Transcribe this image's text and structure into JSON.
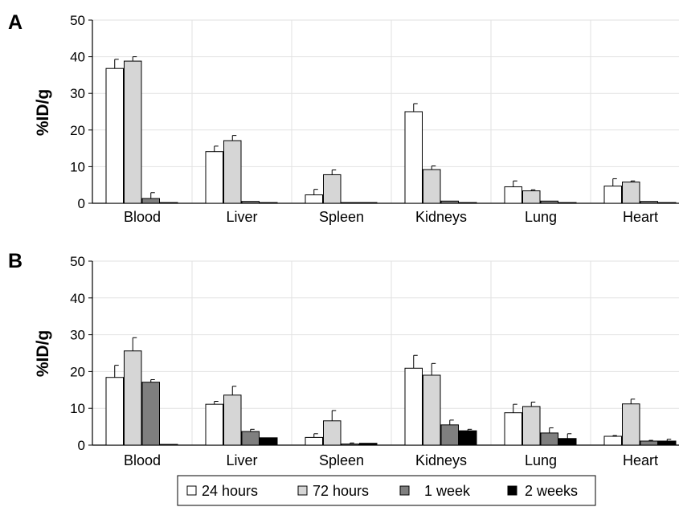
{
  "legend": [
    "24 hours",
    "72 hours",
    "1 week",
    "2 weeks"
  ],
  "series_colors": [
    "#ffffff",
    "#d6d6d6",
    "#7f7f7f",
    "#000000"
  ],
  "chart_data": [
    {
      "type": "bar",
      "panel": "A",
      "ylabel": "%ID/g",
      "ylim": [
        0,
        50
      ],
      "yticks": [
        0,
        10,
        20,
        30,
        40,
        50
      ],
      "grid": true,
      "error_bars": true,
      "categories": [
        "Blood",
        "Liver",
        "Spleen",
        "Kidneys",
        "Lung",
        "Heart"
      ],
      "series": [
        {
          "name": "24 hours",
          "values": [
            36.8,
            14.1,
            2.3,
            25.0,
            4.5,
            4.7
          ],
          "errors": [
            2.5,
            1.5,
            1.5,
            2.2,
            1.6,
            2.0
          ]
        },
        {
          "name": "72 hours",
          "values": [
            38.8,
            17.1,
            7.8,
            9.2,
            3.4,
            5.8
          ],
          "errors": [
            1.2,
            1.4,
            1.3,
            1.0,
            0.3,
            0.3
          ]
        },
        {
          "name": "1 week",
          "values": [
            1.3,
            0.5,
            0.2,
            0.6,
            0.6,
            0.5
          ],
          "errors": [
            1.6,
            0.0,
            0.0,
            0.0,
            0.0,
            0.0
          ]
        },
        {
          "name": "2 weeks",
          "values": [
            0.2,
            0.2,
            0.2,
            0.2,
            0.2,
            0.2
          ],
          "errors": [
            0.0,
            0.0,
            0.0,
            0.0,
            0.0,
            0.0
          ]
        }
      ]
    },
    {
      "type": "bar",
      "panel": "B",
      "ylabel": "%ID/g",
      "ylim": [
        0,
        50
      ],
      "yticks": [
        0,
        10,
        20,
        30,
        40,
        50
      ],
      "grid": true,
      "error_bars": true,
      "categories": [
        "Blood",
        "Liver",
        "Spleen",
        "Kidneys",
        "Lung",
        "Heart"
      ],
      "series": [
        {
          "name": "24 hours",
          "values": [
            18.4,
            11.1,
            2.1,
            20.9,
            8.8,
            2.4
          ],
          "errors": [
            3.3,
            0.8,
            1.0,
            3.5,
            2.3,
            0.2
          ]
        },
        {
          "name": "72 hours",
          "values": [
            25.6,
            13.6,
            6.6,
            19.0,
            10.5,
            11.2
          ],
          "errors": [
            3.6,
            2.4,
            2.8,
            3.2,
            1.2,
            1.3
          ]
        },
        {
          "name": "1 week",
          "values": [
            17.1,
            3.7,
            0.3,
            5.5,
            3.3,
            1.1
          ],
          "errors": [
            0.7,
            0.6,
            0.3,
            1.3,
            1.4,
            0.2
          ]
        },
        {
          "name": "2 weeks",
          "values": [
            0.2,
            2.0,
            0.5,
            3.9,
            1.8,
            1.1
          ],
          "errors": [
            0.0,
            0.0,
            0.0,
            0.4,
            1.3,
            0.5
          ]
        }
      ]
    }
  ]
}
